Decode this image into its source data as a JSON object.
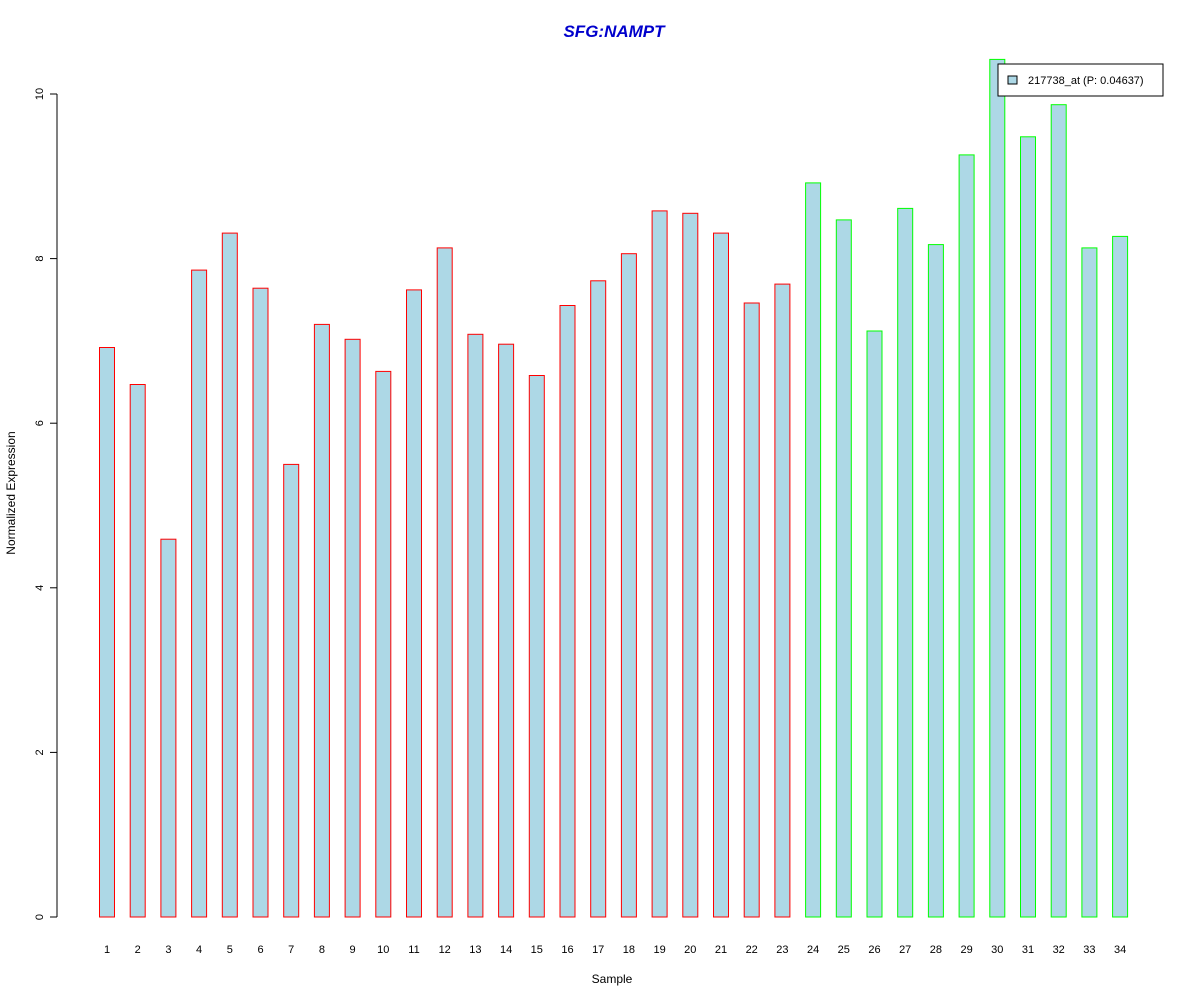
{
  "chart_data": {
    "type": "bar",
    "title": "SFG:NAMPT",
    "xlabel": "Sample",
    "ylabel": "Normalized Expression",
    "ylim": [
      0,
      10.5
    ],
    "yticks": [
      0,
      2,
      4,
      6,
      8,
      10
    ],
    "grid": false,
    "legend": {
      "position": "top-right",
      "label": "217738_at (P: 0.04637)"
    },
    "categories": [
      "1",
      "2",
      "3",
      "4",
      "5",
      "6",
      "7",
      "8",
      "9",
      "10",
      "11",
      "12",
      "13",
      "14",
      "15",
      "16",
      "17",
      "18",
      "19",
      "20",
      "21",
      "22",
      "23",
      "24",
      "25",
      "26",
      "27",
      "28",
      "29",
      "30",
      "31",
      "32",
      "33",
      "34"
    ],
    "values": [
      6.92,
      6.47,
      4.59,
      7.86,
      8.31,
      7.64,
      5.5,
      7.2,
      7.02,
      6.63,
      7.62,
      8.13,
      7.08,
      6.96,
      6.58,
      7.43,
      7.73,
      8.06,
      8.58,
      8.55,
      8.31,
      7.46,
      7.69,
      8.92,
      8.47,
      7.12,
      8.61,
      8.17,
      9.26,
      10.42,
      9.48,
      9.87,
      8.13,
      8.27
    ],
    "groups": [
      {
        "samples": "1-23",
        "border_color": "#ff0000"
      },
      {
        "samples": "24-34",
        "border_color": "#00ff00"
      }
    ],
    "fill_color": "#add8e6"
  },
  "colors": {
    "title": "#0000cc",
    "bar_fill": "#add8e6",
    "group1_border": "#ff0000",
    "group2_border": "#00ff00"
  }
}
